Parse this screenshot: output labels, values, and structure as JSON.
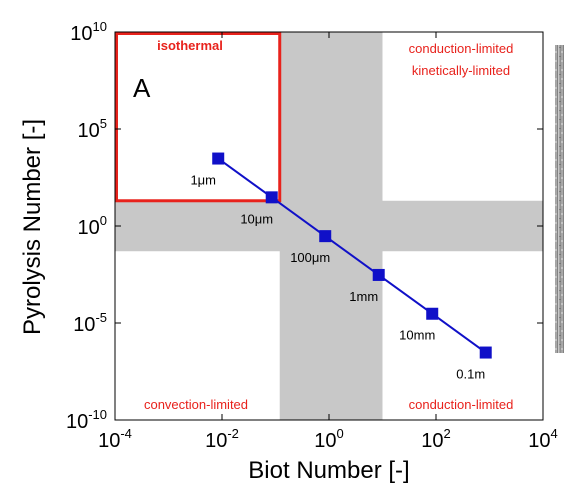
{
  "chart_data": {
    "type": "line",
    "xlabel": "Biot Number [-]",
    "ylabel": "Pyrolysis Number [-]",
    "x_scale": "log",
    "y_scale": "log",
    "xlim": [
      0.0001,
      10000
    ],
    "ylim": [
      1e-10,
      10000000000.0
    ],
    "x_ticks": [
      {
        "value": 0.0001,
        "base": "10",
        "exp": "-4"
      },
      {
        "value": 0.01,
        "base": "10",
        "exp": "-2"
      },
      {
        "value": 1,
        "base": "10",
        "exp": "0"
      },
      {
        "value": 100,
        "base": "10",
        "exp": "2"
      },
      {
        "value": 10000,
        "base": "10",
        "exp": "4"
      }
    ],
    "y_ticks": [
      {
        "value": 1e-10,
        "base": "10",
        "exp": "-10"
      },
      {
        "value": 1e-05,
        "base": "10",
        "exp": "-5"
      },
      {
        "value": 1,
        "base": "10",
        "exp": "0"
      },
      {
        "value": 100000,
        "base": "10",
        "exp": "5"
      },
      {
        "value": 10000000000.0,
        "base": "10",
        "exp": "10"
      }
    ],
    "panel_label": "A",
    "series": [
      {
        "color": "#1010c8",
        "points": [
          {
            "x": 0.0085,
            "y": 3000,
            "label": "1μm"
          },
          {
            "x": 0.085,
            "y": 30,
            "label": "10μm"
          },
          {
            "x": 0.85,
            "y": 0.3,
            "label": "100μm"
          },
          {
            "x": 8.5,
            "y": 0.003,
            "label": "1mm"
          },
          {
            "x": 85,
            "y": 3e-05,
            "label": "10mm"
          },
          {
            "x": 850,
            "y": 3e-07,
            "label": "0.1m"
          }
        ]
      }
    ],
    "bands": {
      "vertical": {
        "x": [
          0.12,
          10
        ],
        "color": "#c8c8c8"
      },
      "horizontal": {
        "y": [
          0.05,
          20
        ],
        "color": "#c8c8c8"
      }
    },
    "isothermal_box": {
      "x": [
        0.0001,
        0.12
      ],
      "y": [
        20,
        10000000000.0
      ],
      "color": "#e8221c"
    },
    "regions": {
      "top_left": "isothermal",
      "top_right_1": "conduction-limited",
      "top_right_2": "kinetically-limited",
      "bottom_left": "convection-limited",
      "bottom_right": "conduction-limited"
    }
  }
}
